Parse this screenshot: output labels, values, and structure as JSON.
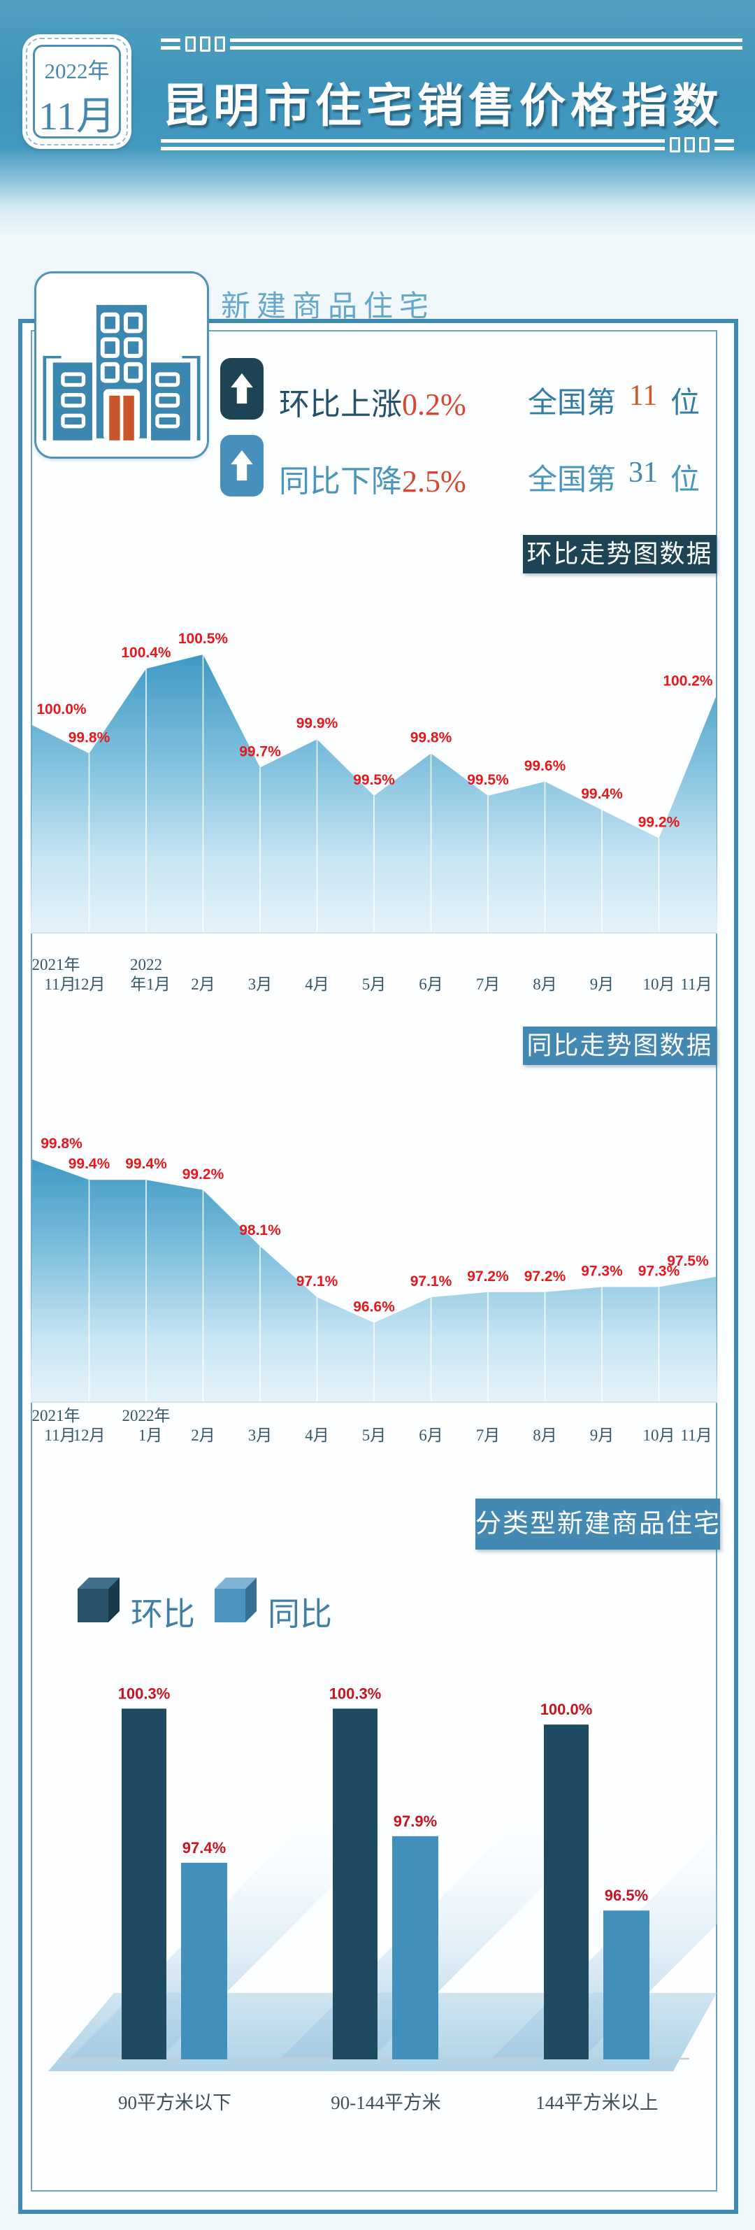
{
  "header": {
    "year": "2022年",
    "month": "11月",
    "title": "昆明市住宅销售价格指数"
  },
  "section": {
    "title": "新建商品住宅",
    "rows": [
      {
        "label": "环比上涨",
        "value": "0.2%",
        "rank_prefix": "全国第",
        "rank": "11",
        "rank_suffix": "位"
      },
      {
        "label": "同比下降",
        "value": "2.5%",
        "rank_prefix": "全国第",
        "rank": "31",
        "rank_suffix": "位"
      }
    ]
  },
  "chart_data": [
    {
      "type": "area",
      "title": "环比走势图数据",
      "unit": "%",
      "x": [
        "2021年\n11月",
        "12月",
        "2022\n年1月",
        "2月",
        "3月",
        "4月",
        "5月",
        "6月",
        "7月",
        "8月",
        "9月",
        "10月",
        "11月"
      ],
      "values": [
        100.0,
        99.8,
        100.4,
        100.5,
        99.7,
        99.9,
        99.5,
        99.8,
        99.5,
        99.6,
        99.4,
        99.2,
        100.2
      ],
      "ylim": [
        99.2,
        100.5
      ],
      "grid": "vertical-white",
      "legend_position": "none"
    },
    {
      "type": "area",
      "title": "同比走势图数据",
      "unit": "%",
      "x": [
        "2021年\n11月",
        "12月",
        "2022年\n1月",
        "2月",
        "3月",
        "4月",
        "5月",
        "6月",
        "7月",
        "8月",
        "9月",
        "10月",
        "11月"
      ],
      "values": [
        99.8,
        99.4,
        99.4,
        99.2,
        98.1,
        97.1,
        96.6,
        97.1,
        97.2,
        97.2,
        97.3,
        97.3,
        97.5
      ],
      "ylim": [
        96.6,
        99.8
      ],
      "grid": "vertical-white",
      "legend_position": "none"
    },
    {
      "type": "bar",
      "title": "分类型新建商品住宅",
      "unit": "%",
      "categories": [
        "90平方米以下",
        "90-144平方米",
        "144平方米以上"
      ],
      "series": [
        {
          "name": "环比",
          "color": "#1e4b61",
          "values": [
            100.3,
            100.3,
            100.0
          ]
        },
        {
          "name": "同比",
          "color": "#4090bb",
          "values": [
            97.4,
            97.9,
            96.5
          ]
        }
      ],
      "legend_position": "top-left"
    }
  ],
  "colors": {
    "accent_border": "#3e8ab1",
    "badge_dark": "#1d4355",
    "badge_light": "#4389b2",
    "area_label_red": "#e8171c",
    "bar_label_red": "#c8131f",
    "value_red": "#d9472e",
    "rank_orange": "#cf5a22",
    "rank_blue": "#4288b2",
    "building_blue": "#3c87af",
    "building_door_orange": "#c9552d"
  }
}
